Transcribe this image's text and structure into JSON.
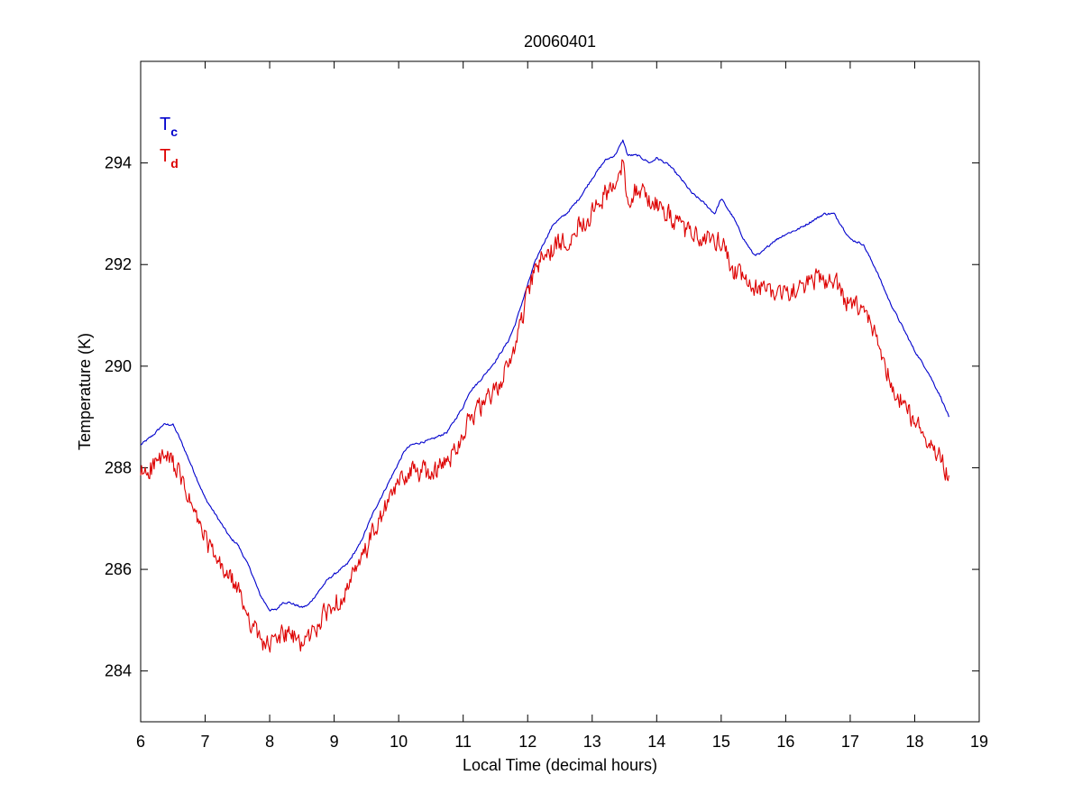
{
  "chart_data": {
    "type": "line",
    "title": "20060401",
    "xlabel": "Local Time (decimal hours)",
    "ylabel": "Temperature (K)",
    "xlim": [
      6,
      19
    ],
    "ylim": [
      283,
      296
    ],
    "xticks": [
      "6",
      "7",
      "8",
      "9",
      "10",
      "11",
      "12",
      "13",
      "14",
      "15",
      "16",
      "17",
      "18",
      "19"
    ],
    "yticks": [
      "284",
      "286",
      "288",
      "290",
      "292",
      "294"
    ],
    "grid": false,
    "legend": {
      "placement": "top-left",
      "entries": [
        {
          "main": "T",
          "sub": "c",
          "color": "#0000cc"
        },
        {
          "main": "T",
          "sub": "d",
          "color": "#dd0000"
        }
      ]
    },
    "series": [
      {
        "key": "Tc",
        "color": "#0000cc",
        "noise": 0.03,
        "x": [
          6.0,
          6.2,
          6.35,
          6.5,
          6.6,
          6.8,
          7.0,
          7.2,
          7.4,
          7.5,
          7.7,
          7.85,
          8.0,
          8.1,
          8.2,
          8.3,
          8.5,
          8.6,
          8.75,
          8.9,
          9.0,
          9.2,
          9.4,
          9.6,
          9.8,
          10.0,
          10.1,
          10.2,
          10.5,
          10.75,
          11.0,
          11.1,
          11.25,
          11.5,
          11.7,
          11.8,
          11.9,
          12.0,
          12.1,
          12.2,
          12.4,
          12.6,
          12.8,
          13.0,
          13.2,
          13.35,
          13.48,
          13.55,
          13.7,
          13.9,
          14.0,
          14.2,
          14.4,
          14.55,
          14.7,
          14.9,
          15.0,
          15.2,
          15.35,
          15.5,
          15.6,
          15.8,
          16.0,
          16.2,
          16.4,
          16.6,
          16.75,
          16.9,
          17.0,
          17.2,
          17.4,
          17.6,
          17.8,
          18.0,
          18.2,
          18.4,
          18.53
        ],
        "y": [
          288.45,
          288.65,
          288.85,
          288.85,
          288.6,
          288.0,
          287.4,
          287.0,
          286.6,
          286.5,
          286.0,
          285.5,
          285.2,
          285.2,
          285.35,
          285.35,
          285.25,
          285.3,
          285.55,
          285.8,
          285.9,
          286.1,
          286.5,
          287.1,
          287.6,
          288.1,
          288.35,
          288.45,
          288.55,
          288.7,
          289.2,
          289.5,
          289.7,
          290.1,
          290.5,
          290.8,
          291.2,
          291.6,
          292.0,
          292.3,
          292.8,
          293.0,
          293.3,
          293.7,
          294.05,
          294.15,
          294.45,
          294.15,
          294.15,
          294.0,
          294.1,
          293.95,
          293.65,
          293.4,
          293.25,
          293.0,
          293.3,
          292.9,
          292.5,
          292.2,
          292.2,
          292.45,
          292.6,
          292.7,
          292.85,
          293.0,
          293.0,
          292.7,
          292.5,
          292.4,
          291.9,
          291.3,
          290.8,
          290.3,
          289.9,
          289.4,
          289.0
        ]
      },
      {
        "key": "Td",
        "color": "#dd0000",
        "noise": 0.28,
        "x": [
          6.0,
          6.2,
          6.35,
          6.5,
          6.6,
          6.8,
          7.0,
          7.2,
          7.4,
          7.5,
          7.7,
          7.85,
          8.0,
          8.1,
          8.2,
          8.3,
          8.5,
          8.6,
          8.75,
          8.9,
          9.0,
          9.2,
          9.4,
          9.6,
          9.8,
          10.0,
          10.1,
          10.2,
          10.5,
          10.75,
          11.0,
          11.1,
          11.25,
          11.5,
          11.7,
          11.8,
          11.9,
          12.0,
          12.1,
          12.2,
          12.4,
          12.6,
          12.8,
          13.0,
          13.2,
          13.35,
          13.48,
          13.55,
          13.7,
          13.9,
          14.0,
          14.2,
          14.4,
          14.55,
          14.7,
          14.9,
          15.0,
          15.2,
          15.35,
          15.5,
          15.6,
          15.8,
          16.0,
          16.2,
          16.4,
          16.6,
          16.75,
          16.9,
          17.0,
          17.2,
          17.4,
          17.6,
          17.8,
          18.0,
          18.2,
          18.4,
          18.53
        ],
        "y": [
          287.85,
          288.05,
          288.2,
          288.1,
          287.85,
          287.2,
          286.6,
          286.1,
          285.8,
          285.6,
          285.0,
          284.6,
          284.5,
          284.6,
          284.75,
          284.7,
          284.55,
          284.65,
          284.9,
          285.2,
          285.3,
          285.6,
          286.1,
          286.7,
          287.2,
          287.7,
          287.85,
          287.95,
          287.9,
          288.1,
          288.7,
          289.0,
          289.15,
          289.5,
          290.0,
          290.4,
          290.9,
          291.4,
          291.8,
          292.1,
          292.3,
          292.5,
          292.8,
          293.0,
          293.4,
          293.5,
          294.0,
          293.3,
          293.5,
          293.25,
          293.2,
          292.95,
          292.7,
          292.6,
          292.5,
          292.45,
          292.5,
          291.85,
          291.7,
          291.5,
          291.55,
          291.5,
          291.45,
          291.5,
          291.7,
          291.7,
          291.75,
          291.3,
          291.2,
          291.1,
          290.6,
          289.8,
          289.3,
          288.9,
          288.6,
          288.2,
          287.85
        ]
      }
    ]
  }
}
